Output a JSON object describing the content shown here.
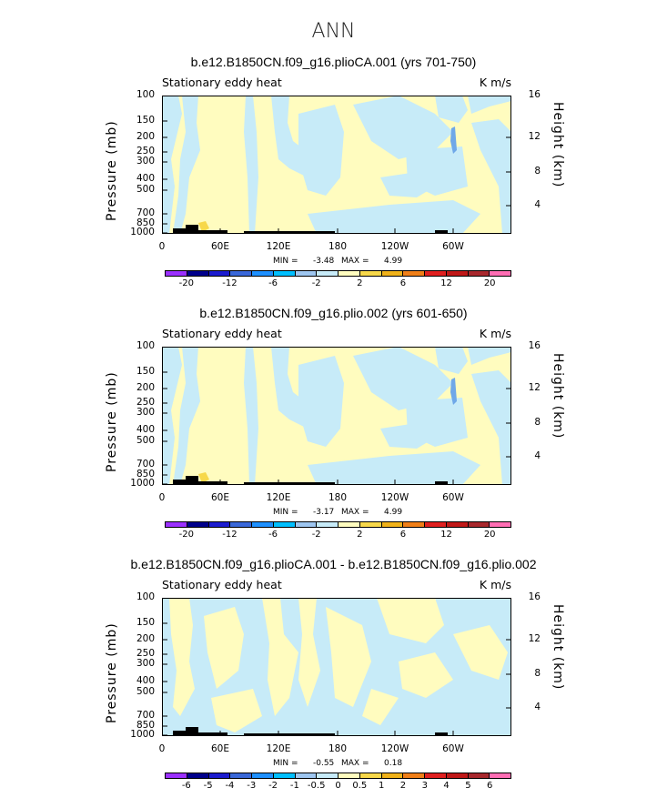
{
  "figure": {
    "title": "ANN"
  },
  "colors": {
    "palette": [
      "#9b30ff",
      "#00008b",
      "#1c1ccf",
      "#3a68d9",
      "#1e90ff",
      "#00bfff",
      "#9ec6f0",
      "#c7ebf8",
      "#fffcbf",
      "#f7d84a",
      "#f0b21a",
      "#f07f18",
      "#e02020",
      "#c01818",
      "#a8282d",
      "#ff6eb4"
    ],
    "topo": "#000000",
    "background": "#ffffff"
  },
  "chart_data": [
    {
      "type": "heatmap",
      "title": "b.e12.B1850CN.f09_g16.plioCA.001 (yrs 701-750)",
      "field": "Stationary eddy heat",
      "units": "K m/s",
      "xlabel": "",
      "ylabel": "Pressure (mb)",
      "ylabel_right": "Height (km)",
      "x_ticks": [
        "0",
        "60E",
        "120E",
        "180",
        "120W",
        "60W"
      ],
      "y_ticks": [
        "100",
        "150",
        "200",
        "250",
        "300",
        "400",
        "500",
        "700",
        "850",
        "1000"
      ],
      "y_ticks_right": [
        "16",
        "12",
        "8",
        "4"
      ],
      "ylim": [
        1000,
        100
      ],
      "xlim": [
        0,
        360
      ],
      "min_label": "MIN =",
      "min": "-3.48",
      "max_label": "MAX =",
      "max": "4.99",
      "colorbar_labels": [
        "-20",
        "-12",
        "-6",
        "-2",
        "2",
        "6",
        "12",
        "20"
      ]
    },
    {
      "type": "heatmap",
      "title": "b.e12.B1850CN.f09_g16.plio.002 (yrs 601-650)",
      "field": "Stationary eddy heat",
      "units": "K m/s",
      "xlabel": "",
      "ylabel": "Pressure (mb)",
      "ylabel_right": "Height (km)",
      "x_ticks": [
        "0",
        "60E",
        "120E",
        "180",
        "120W",
        "60W"
      ],
      "y_ticks": [
        "100",
        "150",
        "200",
        "250",
        "300",
        "400",
        "500",
        "700",
        "850",
        "1000"
      ],
      "y_ticks_right": [
        "16",
        "12",
        "8",
        "4"
      ],
      "ylim": [
        1000,
        100
      ],
      "xlim": [
        0,
        360
      ],
      "min_label": "MIN =",
      "min": "-3.17",
      "max_label": "MAX =",
      "max": "4.99",
      "colorbar_labels": [
        "-20",
        "-12",
        "-6",
        "-2",
        "2",
        "6",
        "12",
        "20"
      ]
    },
    {
      "type": "heatmap",
      "title": "b.e12.B1850CN.f09_g16.plioCA.001 - b.e12.B1850CN.f09_g16.plio.002",
      "field": "Stationary eddy heat",
      "units": "K m/s",
      "xlabel": "",
      "ylabel": "Pressure (mb)",
      "ylabel_right": "Height (km)",
      "x_ticks": [
        "0",
        "60E",
        "120E",
        "180",
        "120W",
        "60W"
      ],
      "y_ticks": [
        "100",
        "150",
        "200",
        "250",
        "300",
        "400",
        "500",
        "700",
        "850",
        "1000"
      ],
      "y_ticks_right": [
        "16",
        "12",
        "8",
        "4"
      ],
      "ylim": [
        1000,
        100
      ],
      "xlim": [
        0,
        360
      ],
      "min_label": "MIN =",
      "min": "-0.55",
      "max_label": "MAX =",
      "max": "0.18",
      "colorbar_labels": [
        "-6",
        "-5",
        "-4",
        "-3",
        "-2",
        "-1",
        "-0.5",
        "0",
        "0.5",
        "1",
        "2",
        "3",
        "4",
        "5",
        "6"
      ]
    }
  ]
}
